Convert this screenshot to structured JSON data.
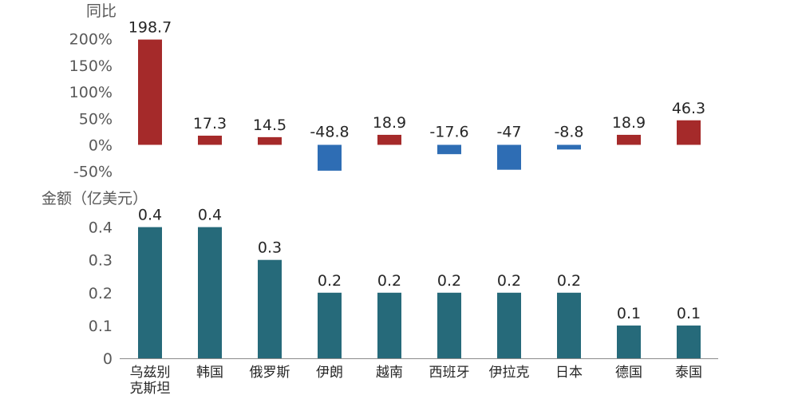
{
  "chart_data": [
    {
      "type": "bar",
      "ylabel": "同比",
      "unit": "%",
      "categories": [
        "乌兹别克斯坦",
        "韩国",
        "俄罗斯",
        "伊朗",
        "越南",
        "西班牙",
        "伊拉克",
        "日本",
        "德国",
        "泰国"
      ],
      "category_lines": [
        [
          "乌兹别",
          "克斯坦"
        ],
        [
          "韩国"
        ],
        [
          "俄罗斯"
        ],
        [
          "伊朗"
        ],
        [
          "越南"
        ],
        [
          "西班牙"
        ],
        [
          "伊拉克"
        ],
        [
          "日本"
        ],
        [
          "德国"
        ],
        [
          "泰国"
        ]
      ],
      "values": [
        198.7,
        17.3,
        14.5,
        -48.8,
        18.9,
        -17.6,
        -47,
        -8.8,
        18.9,
        46.3
      ],
      "ylim": [
        -50,
        200
      ],
      "yticks": [
        "200%",
        "150%",
        "100%",
        "50%",
        "0%",
        "-50%"
      ],
      "ytick_values": [
        200,
        150,
        100,
        50,
        0,
        -50
      ],
      "colors": {
        "positive": "#A52A2A",
        "negative": "#2E6DB4"
      },
      "grid": false
    },
    {
      "type": "bar",
      "ylabel": "金额（亿美元）",
      "categories": [
        "乌兹别克斯坦",
        "韩国",
        "俄罗斯",
        "伊朗",
        "越南",
        "西班牙",
        "伊拉克",
        "日本",
        "德国",
        "泰国"
      ],
      "values": [
        0.4,
        0.4,
        0.3,
        0.2,
        0.2,
        0.2,
        0.2,
        0.2,
        0.1,
        0.1
      ],
      "ylim": [
        0,
        0.4
      ],
      "yticks": [
        "0.4",
        "0.3",
        "0.2",
        "0.1",
        "0"
      ],
      "ytick_values": [
        0.4,
        0.3,
        0.2,
        0.1,
        0
      ],
      "colors": {
        "bar": "#266A7A",
        "axis": "#8C8C8C"
      },
      "grid": false
    }
  ]
}
